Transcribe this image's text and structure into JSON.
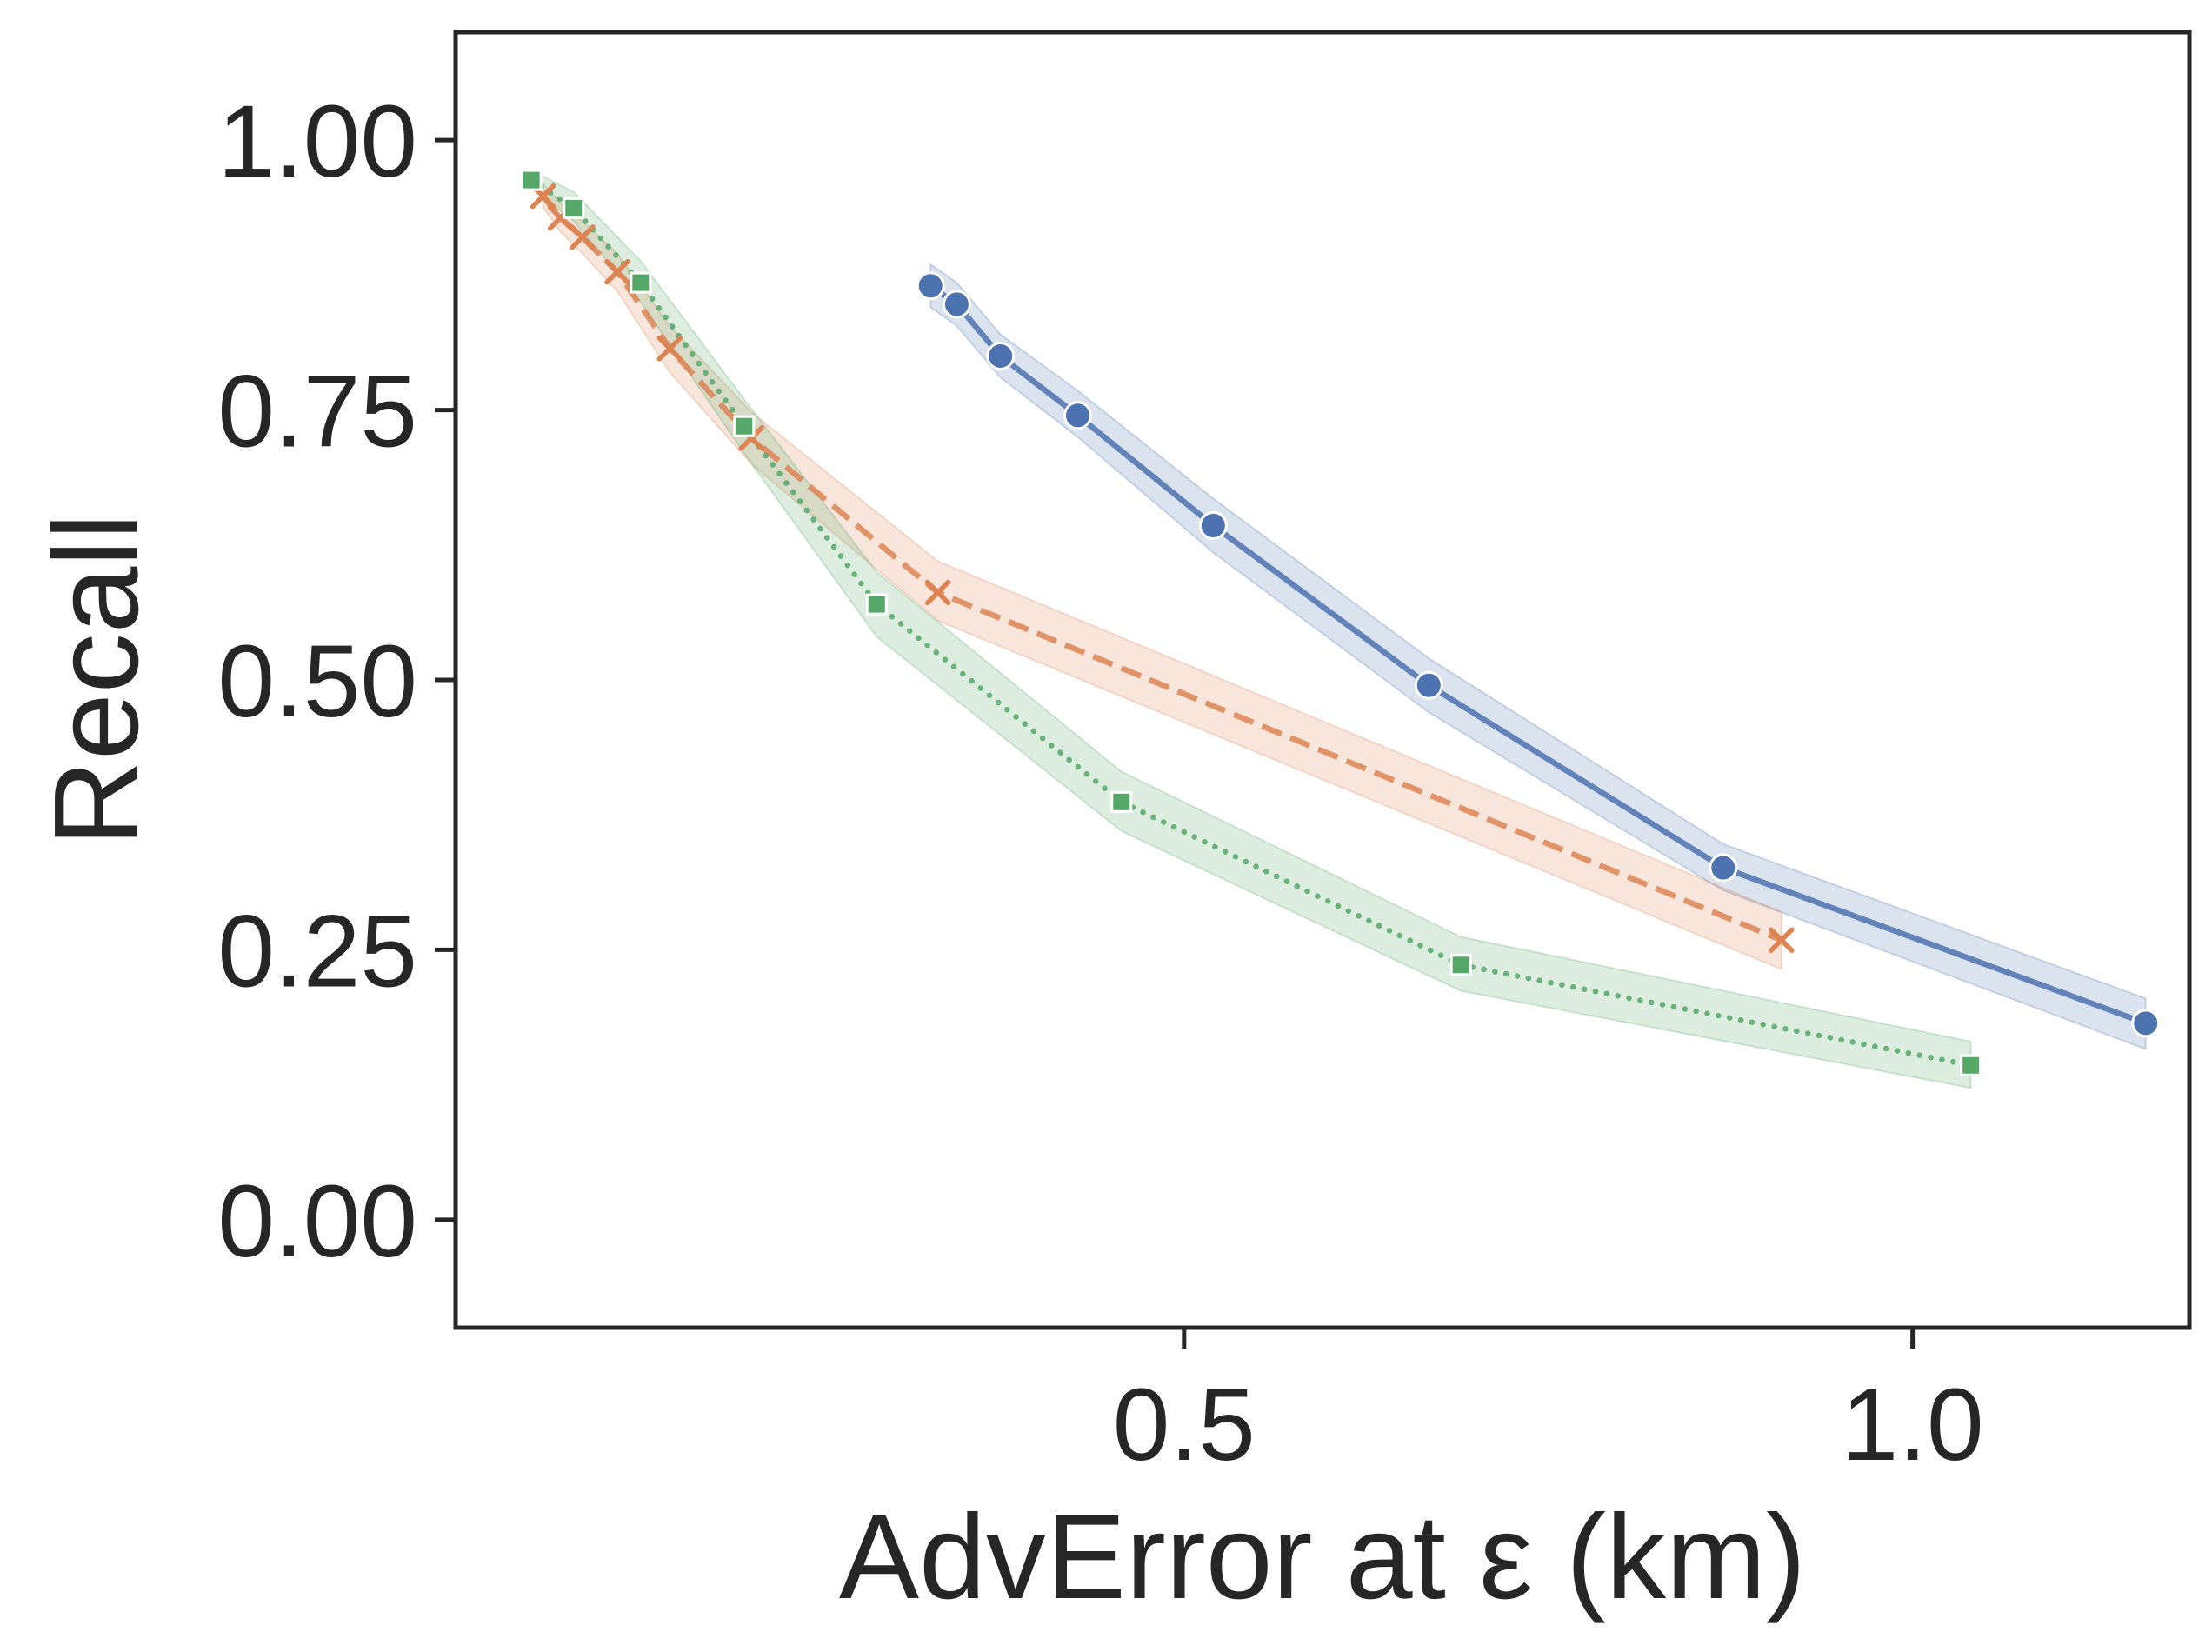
{
  "chart_data": {
    "type": "line",
    "title": "",
    "xlabel": "AdvError at ε (km)",
    "ylabel": "Recall",
    "xlim": [
      0.0,
      1.19
    ],
    "ylim": [
      -0.1,
      1.1
    ],
    "xticks": [
      0.5,
      1.0
    ],
    "xtick_labels": [
      "0.5",
      "1.0"
    ],
    "yticks": [
      0.0,
      0.25,
      0.5,
      0.75,
      1.0
    ],
    "ytick_labels": [
      "0.00",
      "0.25",
      "0.50",
      "0.75",
      "1.00"
    ],
    "grid": false,
    "legend": "none",
    "series": [
      {
        "color": "#4C72B0",
        "line_style": "solid",
        "marker": "circle",
        "x": [
          0.326,
          0.344,
          0.374,
          0.427,
          0.52,
          0.668,
          0.87,
          1.16
        ],
        "y": [
          0.865,
          0.848,
          0.8,
          0.745,
          0.643,
          0.495,
          0.326,
          0.182
        ],
        "ci_lower": [
          0.845,
          0.828,
          0.78,
          0.725,
          0.618,
          0.47,
          0.305,
          0.158
        ],
        "ci_upper": [
          0.885,
          0.868,
          0.82,
          0.768,
          0.668,
          0.52,
          0.348,
          0.205
        ]
      },
      {
        "color": "#DD8452",
        "line_style": "dashed",
        "marker": "x",
        "x": [
          0.06,
          0.072,
          0.087,
          0.111,
          0.147,
          0.203,
          0.331,
          0.91
        ],
        "y": [
          0.948,
          0.928,
          0.91,
          0.878,
          0.807,
          0.724,
          0.581,
          0.259
        ],
        "ci_lower": [
          0.938,
          0.915,
          0.895,
          0.86,
          0.785,
          0.7,
          0.555,
          0.232
        ],
        "ci_upper": [
          0.96,
          0.942,
          0.925,
          0.895,
          0.828,
          0.748,
          0.61,
          0.285
        ]
      },
      {
        "color": "#55A868",
        "line_style": "dotted",
        "marker": "square",
        "x": [
          0.052,
          0.081,
          0.127,
          0.198,
          0.289,
          0.457,
          0.69,
          1.04
        ],
        "y": [
          0.963,
          0.937,
          0.868,
          0.735,
          0.57,
          0.387,
          0.236,
          0.143
        ],
        "ci_lower": [
          0.955,
          0.925,
          0.85,
          0.71,
          0.54,
          0.36,
          0.212,
          0.122
        ],
        "ci_upper": [
          0.972,
          0.952,
          0.888,
          0.76,
          0.6,
          0.415,
          0.262,
          0.165
        ]
      }
    ]
  }
}
